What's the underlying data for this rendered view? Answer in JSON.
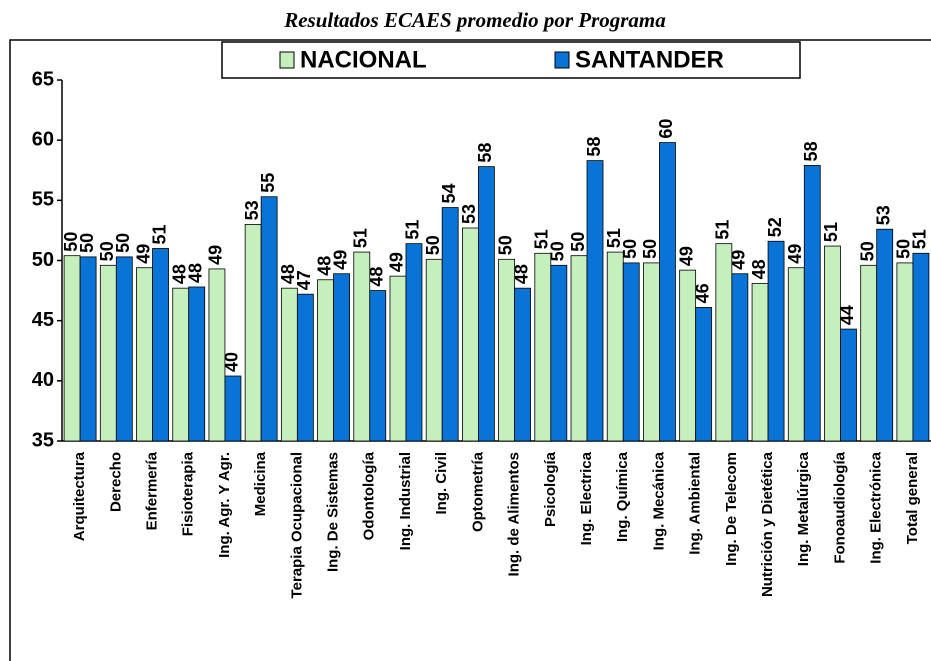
{
  "chart_data": {
    "type": "bar",
    "title": "Resultados ECAES promedio por Programa",
    "categories": [
      "Arquitectura",
      "Derecho",
      "Enfermería",
      "Fisioterapia",
      "Ing. Agr. Y Agr.",
      "Medicina",
      "Terapia Ocupacional",
      "Ing. De Sistemas",
      "Odontología",
      "Ing. Industrial",
      "Ing. Civil",
      "Optometría",
      "Ing. de Alimentos",
      "Psicología",
      "Ing. Electrica",
      "Ing. Química",
      "Ing. Mecánica",
      "Ing. Ambiental",
      "Ing. De Telecom",
      "Nutrición y Dietética",
      "Ing. Metalúrgica",
      "Fonoaudiología",
      "Ing. Electrónica",
      "Total general"
    ],
    "series": [
      {
        "name": "NACIONAL",
        "color": "#c6efbe",
        "values": [
          50.4,
          49.6,
          49.4,
          47.7,
          49.3,
          53.0,
          47.7,
          48.4,
          50.7,
          48.7,
          50.1,
          52.7,
          50.1,
          50.6,
          50.4,
          50.7,
          49.8,
          49.2,
          51.4,
          48.1,
          49.4,
          51.2,
          49.6,
          49.8
        ],
        "value_labels": [
          "50",
          "50",
          "49",
          "48",
          "49",
          "53",
          "48",
          "48",
          "51",
          "49",
          "50",
          "53",
          "50",
          "51",
          "50",
          "51",
          "50",
          "49",
          "51",
          "48",
          "49",
          "51",
          "50",
          "50"
        ]
      },
      {
        "name": "SANTANDER",
        "color": "#0a74d6",
        "values": [
          50.3,
          50.3,
          51.0,
          47.8,
          40.4,
          55.3,
          47.2,
          48.9,
          47.5,
          51.4,
          54.4,
          57.8,
          47.7,
          49.6,
          58.3,
          49.8,
          59.8,
          46.1,
          48.9,
          51.6,
          57.9,
          44.3,
          52.6,
          50.6
        ],
        "value_labels": [
          "50",
          "50",
          "51",
          "48",
          "40",
          "55",
          "47",
          "49",
          "48",
          "51",
          "54",
          "58",
          "48",
          "50",
          "58",
          "50",
          "60",
          "46",
          "49",
          "52",
          "58",
          "44",
          "53",
          "51"
        ]
      }
    ],
    "ylim": [
      35,
      65
    ],
    "yticks": [
      35,
      40,
      45,
      50,
      55,
      60,
      65
    ],
    "grid": false,
    "legend": "top"
  }
}
